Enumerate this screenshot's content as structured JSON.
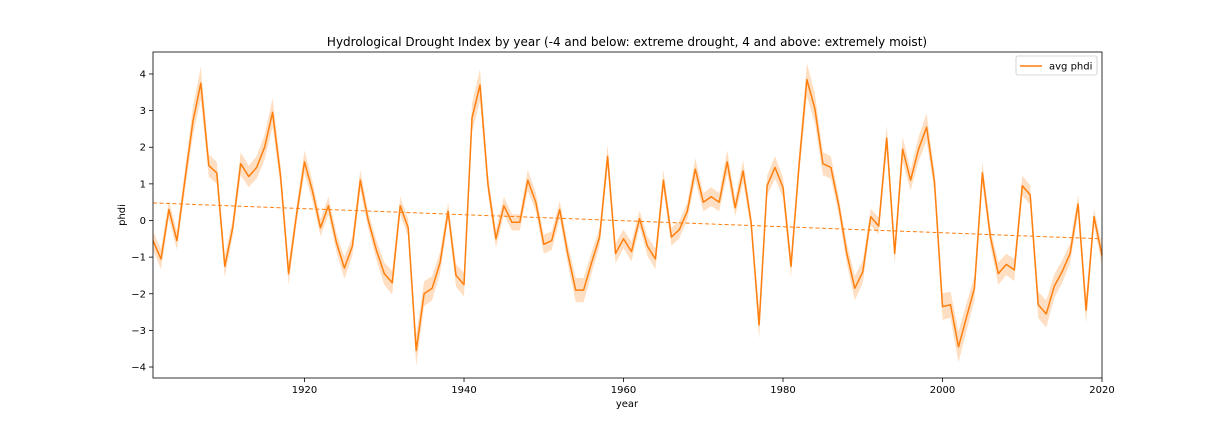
{
  "chart_data": {
    "type": "line",
    "title": "Hydrological Drought Index by year (-4 and below: extreme drought, 4 and above: extremely moist)",
    "xlabel": "year",
    "ylabel": "phdi",
    "xlim": [
      1901,
      2020
    ],
    "ylim": [
      -4.3,
      4.6
    ],
    "x_ticks": [
      1920,
      1940,
      1960,
      1980,
      2000,
      2020
    ],
    "y_ticks": [
      -4,
      -3,
      -2,
      -1,
      0,
      1,
      2,
      3,
      4
    ],
    "legend": {
      "position": "top-right",
      "entries": [
        "avg phdi"
      ]
    },
    "grid": false,
    "colors": {
      "line": "#ff7f0e",
      "band": "#ff7f0e",
      "trend": "#ff7f0e"
    },
    "series": [
      {
        "name": "avg phdi",
        "x": [
          1901,
          1902,
          1903,
          1904,
          1905,
          1906,
          1907,
          1908,
          1909,
          1910,
          1911,
          1912,
          1913,
          1914,
          1915,
          1916,
          1917,
          1918,
          1919,
          1920,
          1921,
          1922,
          1923,
          1924,
          1925,
          1926,
          1927,
          1928,
          1929,
          1930,
          1931,
          1932,
          1933,
          1934,
          1935,
          1936,
          1937,
          1938,
          1939,
          1940,
          1941,
          1942,
          1943,
          1944,
          1945,
          1946,
          1947,
          1948,
          1949,
          1950,
          1951,
          1952,
          1953,
          1954,
          1955,
          1956,
          1957,
          1958,
          1959,
          1960,
          1961,
          1962,
          1963,
          1964,
          1965,
          1966,
          1967,
          1968,
          1969,
          1970,
          1971,
          1972,
          1973,
          1974,
          1975,
          1976,
          1977,
          1978,
          1979,
          1980,
          1981,
          1982,
          1983,
          1984,
          1985,
          1986,
          1987,
          1988,
          1989,
          1990,
          1991,
          1992,
          1993,
          1994,
          1995,
          1996,
          1997,
          1998,
          1999,
          2000,
          2001,
          2002,
          2003,
          2004,
          2005,
          2006,
          2007,
          2008,
          2009,
          2010,
          2011,
          2012,
          2013,
          2014,
          2015,
          2016,
          2017,
          2018,
          2019,
          2020
        ],
        "y": [
          -0.55,
          -1.05,
          0.3,
          -0.55,
          1.1,
          2.7,
          3.75,
          1.5,
          1.3,
          -1.25,
          -0.2,
          1.55,
          1.2,
          1.45,
          2.0,
          2.95,
          1.2,
          -1.45,
          0.15,
          1.6,
          0.8,
          -0.2,
          0.4,
          -0.6,
          -1.3,
          -0.7,
          1.1,
          0.0,
          -0.8,
          -1.45,
          -1.7,
          0.4,
          -0.2,
          -3.55,
          -2.0,
          -1.85,
          -1.15,
          0.25,
          -1.5,
          -1.75,
          2.8,
          3.7,
          1.0,
          -0.5,
          0.4,
          -0.05,
          -0.05,
          1.1,
          0.5,
          -0.65,
          -0.55,
          0.3,
          -0.9,
          -1.9,
          -1.9,
          -1.15,
          -0.45,
          1.75,
          -0.9,
          -0.5,
          -0.85,
          0.05,
          -0.7,
          -1.05,
          1.1,
          -0.45,
          -0.25,
          0.25,
          1.4,
          0.5,
          0.65,
          0.5,
          1.6,
          0.35,
          1.35,
          -0.05,
          -2.85,
          0.95,
          1.45,
          0.9,
          -1.25,
          1.5,
          3.85,
          3.05,
          1.55,
          1.45,
          0.4,
          -0.9,
          -1.85,
          -1.4,
          0.1,
          -0.15,
          2.25,
          -0.9,
          1.95,
          1.1,
          1.95,
          2.55,
          1.05,
          -2.35,
          -2.3,
          -3.45,
          -2.65,
          -1.85,
          1.3,
          -0.45,
          -1.45,
          -1.2,
          -1.35,
          0.95,
          0.7,
          -2.3,
          -2.55,
          -1.8,
          -1.4,
          -0.9,
          0.45,
          -2.45,
          0.1,
          -0.95
        ]
      },
      {
        "name": "",
        "style": "dashed",
        "x": [
          1901,
          2020
        ],
        "y": [
          0.48,
          -0.5
        ]
      }
    ]
  }
}
